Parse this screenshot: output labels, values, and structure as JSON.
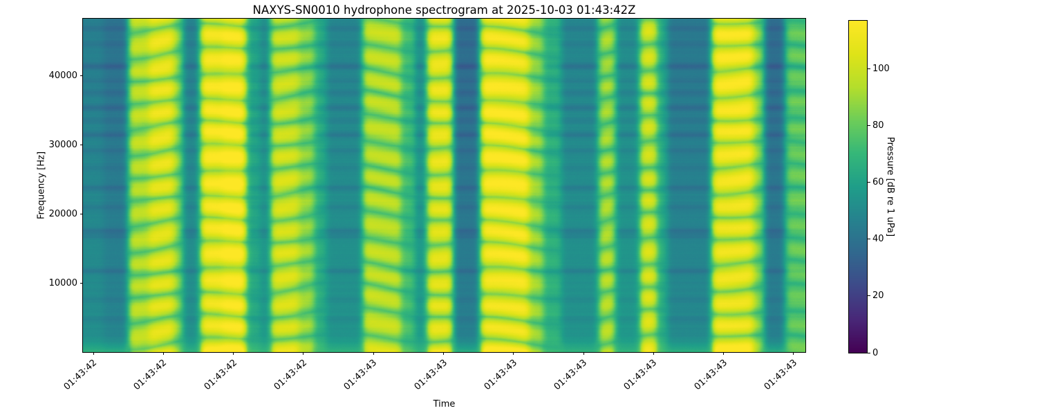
{
  "chart_data": {
    "type": "heatmap",
    "variant": "spectrogram",
    "title": "NAXYS-SN0010 hydrophone spectrogram at 2025-10-03 01:43:42Z",
    "xlabel": "Time",
    "ylabel": "Frequency [Hz]",
    "x_tick_labels": [
      "01:43:42",
      "01:43:42",
      "01:43:42",
      "01:43:42",
      "01:43:43",
      "01:43:43",
      "01:43:43",
      "01:43:43",
      "01:43:43",
      "01:43:43",
      "01:43:43"
    ],
    "y_tick_values": [
      10000,
      20000,
      30000,
      40000
    ],
    "ylim": [
      0,
      48200
    ],
    "grid": false,
    "legend": null,
    "colormap": "viridis",
    "colorbar": {
      "label": "Pressure [dB re 1 uPa]",
      "tick_values": [
        0,
        20,
        40,
        60,
        80,
        100
      ],
      "vmin": 0,
      "vmax": 117
    },
    "band_period_hz": 3500,
    "time_profile_segments": [
      [
        0.0,
        0.029,
        52
      ],
      [
        0.029,
        0.063,
        48
      ],
      [
        0.063,
        0.092,
        95
      ],
      [
        0.092,
        0.126,
        106
      ],
      [
        0.126,
        0.138,
        86
      ],
      [
        0.138,
        0.163,
        53
      ],
      [
        0.163,
        0.193,
        110
      ],
      [
        0.193,
        0.226,
        114
      ],
      [
        0.226,
        0.245,
        64
      ],
      [
        0.245,
        0.26,
        56
      ],
      [
        0.26,
        0.299,
        100
      ],
      [
        0.299,
        0.321,
        88
      ],
      [
        0.321,
        0.337,
        66
      ],
      [
        0.337,
        0.388,
        54
      ],
      [
        0.388,
        0.44,
        96
      ],
      [
        0.44,
        0.459,
        74
      ],
      [
        0.459,
        0.477,
        57
      ],
      [
        0.477,
        0.512,
        106
      ],
      [
        0.512,
        0.55,
        46
      ],
      [
        0.55,
        0.617,
        111
      ],
      [
        0.617,
        0.637,
        89
      ],
      [
        0.637,
        0.662,
        68
      ],
      [
        0.662,
        0.714,
        54
      ],
      [
        0.714,
        0.737,
        92
      ],
      [
        0.737,
        0.771,
        56
      ],
      [
        0.771,
        0.794,
        101
      ],
      [
        0.794,
        0.809,
        66
      ],
      [
        0.809,
        0.871,
        50
      ],
      [
        0.871,
        0.928,
        110
      ],
      [
        0.928,
        0.943,
        86
      ],
      [
        0.943,
        0.972,
        46
      ],
      [
        0.972,
        1.0,
        80
      ]
    ],
    "row_streaks": [
      [
        46800,
        5
      ],
      [
        44500,
        4
      ],
      [
        41300,
        8
      ],
      [
        39200,
        4
      ],
      [
        37500,
        5
      ],
      [
        35300,
        7
      ],
      [
        33500,
        4
      ],
      [
        31400,
        7
      ],
      [
        29100,
        4
      ],
      [
        26600,
        3
      ],
      [
        23700,
        6
      ],
      [
        20900,
        4
      ],
      [
        17500,
        7
      ],
      [
        16700,
        4
      ],
      [
        11700,
        6
      ],
      [
        7600,
        3
      ],
      [
        4700,
        3
      ]
    ]
  }
}
